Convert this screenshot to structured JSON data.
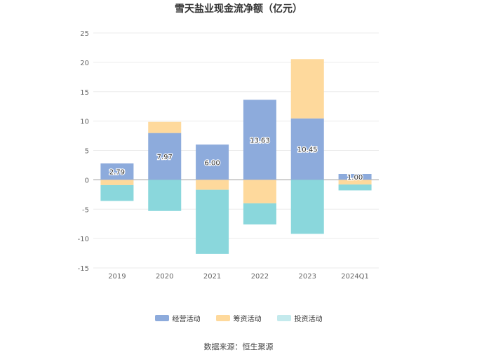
{
  "chart_data": {
    "type": "bar",
    "stacked": true,
    "title": "雪天盐业现金流净额（亿元）",
    "categories": [
      "2019",
      "2020",
      "2021",
      "2022",
      "2023",
      "2024Q1"
    ],
    "series": [
      {
        "name": "经营活动",
        "color": "#8dabdc",
        "values": [
          2.79,
          7.97,
          6.0,
          13.63,
          10.45,
          1.0
        ],
        "labels": [
          "2.79",
          "7.97",
          "6.00",
          "13.63",
          "10.45",
          "1.00"
        ]
      },
      {
        "name": "筹资活动",
        "color": "#fed99c",
        "values": [
          -0.9,
          1.9,
          -1.7,
          -4.0,
          10.1,
          -0.8
        ]
      },
      {
        "name": "投资活动",
        "color": "#8ad7dc",
        "values": [
          -2.7,
          -5.3,
          -10.9,
          -3.6,
          -9.2,
          -1.0
        ]
      }
    ],
    "legend_colors": [
      "#8dabdc",
      "#fed99c",
      "#c4eaed"
    ],
    "ylim": [
      -15,
      25
    ],
    "yticks": [
      25,
      20,
      15,
      10,
      5,
      0,
      -5,
      -10,
      -15
    ],
    "legend_position": "bottom",
    "grid": true
  },
  "footer": {
    "source": "数据来源：恒生聚源"
  }
}
